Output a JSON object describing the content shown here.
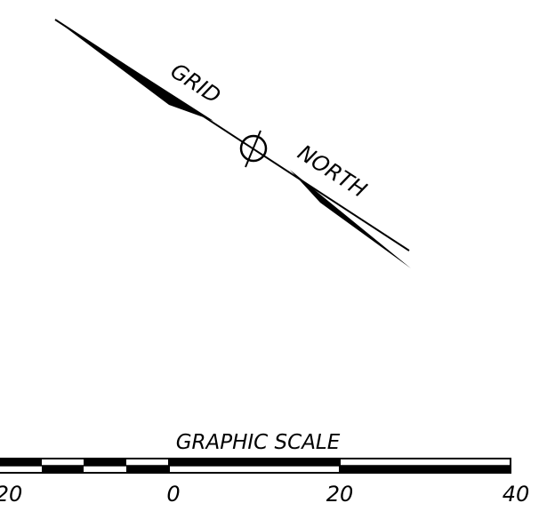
{
  "north_arrow": {
    "label_grid": "GRID",
    "label_north": "NORTH"
  },
  "graphic_scale": {
    "title": "GRAPHIC SCALE",
    "tick_labels": [
      "20",
      "0",
      "20",
      "40"
    ]
  },
  "colors": {
    "ink": "#000000",
    "paper": "#ffffff"
  }
}
